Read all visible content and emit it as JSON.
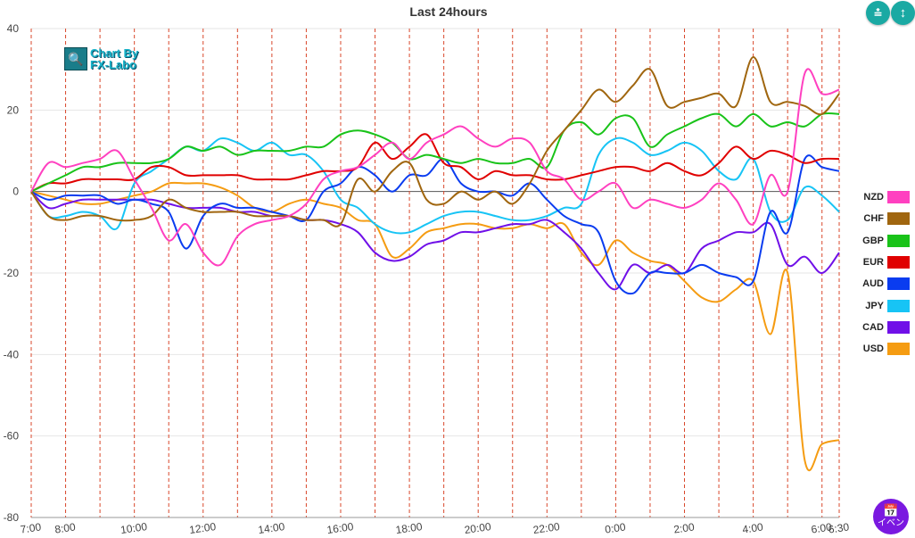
{
  "header": {
    "title": "Last 24hours"
  },
  "brand": {
    "line1": "Chart By",
    "line2": "FX-Labo",
    "icon": "chart-magnifier-icon"
  },
  "toolbar": {
    "collapse_icon": "collapse-vertical-icon",
    "expand_icon": "expand-vertical-icon"
  },
  "event_button": {
    "label": "イベン",
    "icon": "calendar-icon",
    "color": "#7a18e0"
  },
  "chart_data": {
    "type": "line",
    "title": "Last 24hours",
    "xlabel": "",
    "ylabel": "",
    "ylim": [
      -80,
      40
    ],
    "y_ticks": [
      40,
      20,
      0,
      -20,
      -40,
      -60,
      -80
    ],
    "xlim": [
      0,
      23.5
    ],
    "x_ticks": [
      {
        "label": "7:00",
        "x": 0
      },
      {
        "label": "8:00",
        "x": 1
      },
      {
        "label": "10:00",
        "x": 3
      },
      {
        "label": "12:00",
        "x": 5
      },
      {
        "label": "14:00",
        "x": 7
      },
      {
        "label": "16:00",
        "x": 9
      },
      {
        "label": "18:00",
        "x": 11
      },
      {
        "label": "20:00",
        "x": 13
      },
      {
        "label": "22:00",
        "x": 15
      },
      {
        "label": "0:00",
        "x": 17
      },
      {
        "label": "2:00",
        "x": 19
      },
      {
        "label": "4:00",
        "x": 21
      },
      {
        "label": "6:00",
        "x": 23
      },
      {
        "label": "6:30",
        "x": 23.5
      }
    ],
    "vertical_dashed_lines_x": [
      0,
      1,
      2,
      3,
      4,
      5,
      6,
      7,
      8,
      9,
      10,
      11,
      12,
      13,
      14,
      15,
      16,
      17,
      18,
      19,
      20,
      21,
      22,
      23,
      23.5
    ],
    "grid": "horizontal",
    "legend_position": "right",
    "x": [
      0,
      0.5,
      1,
      1.5,
      2,
      2.5,
      3,
      3.5,
      4,
      4.5,
      5,
      5.5,
      6,
      6.5,
      7,
      7.5,
      8,
      8.5,
      9,
      9.5,
      10,
      10.5,
      11,
      11.5,
      12,
      12.5,
      13,
      13.5,
      14,
      14.5,
      15,
      15.5,
      16,
      16.5,
      17,
      17.5,
      18,
      18.5,
      19,
      19.5,
      20,
      20.5,
      21,
      21.5,
      22,
      22.5,
      23,
      23.5
    ],
    "series": [
      {
        "name": "NZD",
        "color": "#ff40c0",
        "values": [
          0,
          7,
          6,
          7,
          8,
          10,
          3,
          -4,
          -12,
          -8,
          -15,
          -18,
          -11,
          -8,
          -7,
          -6,
          -3,
          3,
          5,
          6,
          9,
          12,
          8,
          12,
          14,
          16,
          13,
          11,
          13,
          12,
          5,
          3,
          -2,
          0,
          2,
          -4,
          -2,
          -3,
          -4,
          -2,
          2,
          -2,
          -8,
          4,
          0,
          29,
          24,
          25
        ]
      },
      {
        "name": "CHF",
        "color": "#a0660f",
        "values": [
          0,
          -6,
          -7,
          -6,
          -6,
          -7,
          -7,
          -6,
          -2,
          -4,
          -5,
          -5,
          -5,
          -6,
          -6,
          -6,
          -7,
          -7,
          -8,
          3,
          0,
          5,
          7,
          -2,
          -3,
          0,
          -2,
          0,
          -3,
          2,
          10,
          15,
          20,
          25,
          22,
          26,
          30,
          21,
          22,
          23,
          24,
          21,
          33,
          22,
          22,
          21,
          19,
          24
        ]
      },
      {
        "name": "GBP",
        "color": "#19c319",
        "values": [
          0,
          2,
          4,
          6,
          6,
          7,
          7,
          7,
          8,
          11,
          10,
          11,
          9,
          10,
          10,
          10,
          11,
          11,
          14,
          15,
          14,
          12,
          8,
          9,
          8,
          7,
          8,
          7,
          7,
          8,
          6,
          15,
          17,
          14,
          18,
          18,
          11,
          14,
          16,
          18,
          19,
          16,
          19,
          16,
          17,
          16,
          19,
          19
        ]
      },
      {
        "name": "EUR",
        "color": "#e00000",
        "values": [
          0,
          2,
          2,
          3,
          3,
          3,
          3,
          6,
          6,
          4,
          4,
          4,
          4,
          3,
          3,
          3,
          4,
          5,
          5,
          6,
          12,
          8,
          11,
          14,
          7,
          6,
          3,
          5,
          4,
          4,
          3,
          3,
          4,
          5,
          6,
          6,
          5,
          7,
          5,
          4,
          7,
          11,
          8,
          10,
          9,
          7,
          8,
          8
        ]
      },
      {
        "name": "AUD",
        "color": "#0a3cf0",
        "values": [
          0,
          -2,
          -1,
          -1,
          -1,
          -3,
          -2,
          -3,
          -5,
          -14,
          -6,
          -3,
          -4,
          -4,
          -5,
          -6,
          -7,
          0,
          2,
          6,
          4,
          0,
          4,
          4,
          8,
          2,
          0,
          0,
          -1,
          2,
          -2,
          -6,
          -8,
          -10,
          -22,
          -25,
          -20,
          -20,
          -20,
          -18,
          -20,
          -21,
          -22,
          -5,
          -10,
          8,
          6,
          5
        ]
      },
      {
        "name": "JPY",
        "color": "#17c4f5",
        "values": [
          0,
          -6,
          -6,
          -5,
          -6,
          -9,
          2,
          5,
          8,
          11,
          10,
          13,
          12,
          10,
          12,
          9,
          9,
          5,
          -2,
          -4,
          -8,
          -10,
          -10,
          -8,
          -6,
          -5,
          -5,
          -6,
          -7,
          -7,
          -6,
          -4,
          -3,
          9,
          13,
          12,
          9,
          10,
          12,
          10,
          5,
          3,
          8,
          -5,
          -7,
          1,
          -1,
          -5
        ]
      },
      {
        "name": "CAD",
        "color": "#7010e8",
        "values": [
          0,
          -4,
          -3,
          -2,
          -2,
          -2,
          -2,
          -2,
          -3,
          -4,
          -4,
          -4,
          -5,
          -5,
          -6,
          -6,
          -7,
          -7,
          -8,
          -10,
          -15,
          -17,
          -16,
          -13,
          -12,
          -10,
          -10,
          -9,
          -8,
          -8,
          -7,
          -10,
          -14,
          -20,
          -24,
          -18,
          -20,
          -18,
          -20,
          -14,
          -12,
          -10,
          -10,
          -8,
          -18,
          -16,
          -20,
          -15
        ]
      },
      {
        "name": "USD",
        "color": "#f59c12",
        "values": [
          0,
          -1,
          -2,
          -3,
          -3,
          -2,
          -1,
          0,
          2,
          2,
          2,
          1,
          -1,
          -4,
          -5,
          -3,
          -2,
          -3,
          -4,
          -7,
          -8,
          -16,
          -14,
          -10,
          -9,
          -8,
          -8,
          -9,
          -9,
          -8,
          -9,
          -8,
          -15,
          -18,
          -12,
          -15,
          -17,
          -18,
          -22,
          -26,
          -27,
          -24,
          -22,
          -35,
          -20,
          -66,
          -62,
          -61
        ]
      }
    ]
  }
}
